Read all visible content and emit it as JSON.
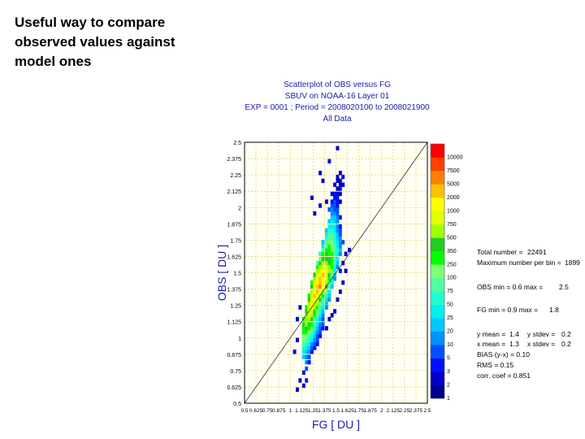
{
  "slide": {
    "intro_lines": [
      "Useful way to compare",
      "observed values against",
      "model ones"
    ]
  },
  "chart_header": {
    "lines": [
      "Scatterplot of OBS versus FG",
      "SBUV on NOAA-16 Layer 01",
      "EXP = 0001 ; Period = 2008020100 to 2008021900",
      "All Data"
    ]
  },
  "stats": {
    "total_label": "Total number =",
    "total_value": "22491",
    "maxbin_label": "Maximum number per bin =",
    "maxbin_value": "1899",
    "obs_label": "OBS min = 0.6 max =",
    "obs_value": "2.5",
    "fg_label": "FG min = 0.9 max =",
    "fg_value": "1.8",
    "ymean_label": "y mean =",
    "ymean_value": "1.4",
    "ystdev_label": "y stdev =",
    "ystdev_value": "0.2",
    "xmean_label": "x mean =",
    "xmean_value": "1.3",
    "xstdev_label": "x stdev =",
    "xstdev_value": "0.2",
    "bias_line": "BIAS (y-x) = 0.10",
    "rms_line": "RMS = 0.15",
    "corr_line": "corr. coef = 0.851"
  },
  "chart_data": {
    "type": "heatmap",
    "xlabel": "FG [ DU ]",
    "ylabel": "OBS [ DU ]",
    "xlim": [
      0.5,
      2.5
    ],
    "ylim": [
      0.5,
      2.5
    ],
    "x_ticks": [
      "0.5",
      "0.625",
      "0.75",
      "0.875",
      "1",
      "1.125",
      "1.25",
      "1.375",
      "1.5",
      "1.625",
      "1.75",
      "1.875",
      "2",
      "2.125",
      "2.25",
      "2.375",
      "2.5"
    ],
    "y_ticks": [
      "0.5",
      "0.625",
      "0.75",
      "0.875",
      "1",
      "1.125",
      "1.25",
      "1.375",
      "1.5",
      "1.625",
      "1.75",
      "1.875",
      "2",
      "2.125",
      "2.25",
      "2.375",
      "2.5"
    ],
    "grid": true,
    "diagonal_line": true,
    "color_levels": [
      "1",
      "2",
      "3",
      "5",
      "10",
      "20",
      "25",
      "50",
      "75",
      "100",
      "250",
      "350",
      "500",
      "750",
      "1000",
      "2000",
      "5000",
      "7500",
      "10000"
    ],
    "level_colors": [
      "#00008f",
      "#0000c8",
      "#0010ff",
      "#0050ff",
      "#0090ff",
      "#00c8ff",
      "#00f0f0",
      "#20ffd0",
      "#50ffa0",
      "#80ff70",
      "#00ff00",
      "#20d020",
      "#a0ff00",
      "#e0ff00",
      "#ffff00",
      "#ffc000",
      "#ff8000",
      "#ff4000",
      "#ff0000"
    ],
    "bin_size": 0.0313,
    "bins": [
      [
        1.13,
        0.62,
        1
      ],
      [
        1.16,
        0.66,
        2
      ],
      [
        1.13,
        0.72,
        2
      ],
      [
        1.16,
        0.75,
        3
      ],
      [
        1.16,
        0.8,
        4
      ],
      [
        1.19,
        0.8,
        2
      ],
      [
        1.13,
        0.84,
        5
      ],
      [
        1.16,
        0.84,
        4
      ],
      [
        1.19,
        0.84,
        3
      ],
      [
        1.13,
        0.88,
        6
      ],
      [
        1.16,
        0.88,
        5
      ],
      [
        1.19,
        0.88,
        4
      ],
      [
        1.22,
        0.88,
        2
      ],
      [
        1.13,
        0.91,
        7
      ],
      [
        1.16,
        0.91,
        6
      ],
      [
        1.19,
        0.91,
        5
      ],
      [
        1.22,
        0.91,
        3
      ],
      [
        1.25,
        0.91,
        2
      ],
      [
        1.13,
        0.94,
        8
      ],
      [
        1.16,
        0.94,
        7
      ],
      [
        1.19,
        0.94,
        6
      ],
      [
        1.22,
        0.94,
        4
      ],
      [
        1.25,
        0.94,
        3
      ],
      [
        1.28,
        0.94,
        2
      ],
      [
        1.13,
        0.97,
        9
      ],
      [
        1.16,
        0.97,
        8
      ],
      [
        1.19,
        0.97,
        7
      ],
      [
        1.22,
        0.97,
        6
      ],
      [
        1.25,
        0.97,
        4
      ],
      [
        1.28,
        0.97,
        3
      ],
      [
        1.13,
        1.0,
        9
      ],
      [
        1.16,
        1.0,
        9
      ],
      [
        1.19,
        1.0,
        8
      ],
      [
        1.22,
        1.0,
        7
      ],
      [
        1.25,
        1.0,
        5
      ],
      [
        1.28,
        1.0,
        3
      ],
      [
        1.31,
        1.0,
        2
      ],
      [
        1.13,
        1.03,
        10
      ],
      [
        1.16,
        1.03,
        10
      ],
      [
        1.19,
        1.03,
        9
      ],
      [
        1.22,
        1.03,
        8
      ],
      [
        1.25,
        1.03,
        6
      ],
      [
        1.28,
        1.03,
        4
      ],
      [
        1.31,
        1.03,
        3
      ],
      [
        1.13,
        1.06,
        10
      ],
      [
        1.16,
        1.06,
        11
      ],
      [
        1.19,
        1.06,
        10
      ],
      [
        1.22,
        1.06,
        9
      ],
      [
        1.25,
        1.06,
        7
      ],
      [
        1.28,
        1.06,
        5
      ],
      [
        1.31,
        1.06,
        3
      ],
      [
        1.34,
        1.06,
        2
      ],
      [
        1.13,
        1.09,
        11
      ],
      [
        1.16,
        1.09,
        12
      ],
      [
        1.19,
        1.09,
        11
      ],
      [
        1.22,
        1.09,
        10
      ],
      [
        1.25,
        1.09,
        8
      ],
      [
        1.28,
        1.09,
        6
      ],
      [
        1.31,
        1.09,
        4
      ],
      [
        1.34,
        1.09,
        3
      ],
      [
        1.13,
        1.13,
        10
      ],
      [
        1.16,
        1.13,
        12
      ],
      [
        1.19,
        1.13,
        12
      ],
      [
        1.22,
        1.13,
        11
      ],
      [
        1.25,
        1.13,
        9
      ],
      [
        1.28,
        1.13,
        7
      ],
      [
        1.31,
        1.13,
        5
      ],
      [
        1.34,
        1.13,
        3
      ],
      [
        1.16,
        1.16,
        12
      ],
      [
        1.19,
        1.16,
        13
      ],
      [
        1.22,
        1.16,
        12
      ],
      [
        1.25,
        1.16,
        10
      ],
      [
        1.28,
        1.16,
        8
      ],
      [
        1.31,
        1.16,
        6
      ],
      [
        1.34,
        1.16,
        4
      ],
      [
        1.16,
        1.19,
        11
      ],
      [
        1.19,
        1.19,
        13
      ],
      [
        1.22,
        1.19,
        13
      ],
      [
        1.25,
        1.19,
        11
      ],
      [
        1.28,
        1.19,
        9
      ],
      [
        1.31,
        1.19,
        7
      ],
      [
        1.34,
        1.19,
        5
      ],
      [
        1.16,
        1.22,
        10
      ],
      [
        1.19,
        1.22,
        13
      ],
      [
        1.22,
        1.22,
        14
      ],
      [
        1.25,
        1.22,
        12
      ],
      [
        1.28,
        1.22,
        10
      ],
      [
        1.31,
        1.22,
        8
      ],
      [
        1.34,
        1.22,
        6
      ],
      [
        1.38,
        1.22,
        4
      ],
      [
        1.19,
        1.25,
        12
      ],
      [
        1.22,
        1.25,
        14
      ],
      [
        1.25,
        1.25,
        13
      ],
      [
        1.28,
        1.25,
        12
      ],
      [
        1.31,
        1.25,
        9
      ],
      [
        1.34,
        1.25,
        7
      ],
      [
        1.38,
        1.25,
        5
      ],
      [
        1.19,
        1.28,
        11
      ],
      [
        1.22,
        1.28,
        14
      ],
      [
        1.25,
        1.28,
        14
      ],
      [
        1.28,
        1.28,
        13
      ],
      [
        1.31,
        1.28,
        11
      ],
      [
        1.34,
        1.28,
        8
      ],
      [
        1.38,
        1.28,
        6
      ],
      [
        1.41,
        1.28,
        4
      ],
      [
        1.19,
        1.31,
        10
      ],
      [
        1.22,
        1.31,
        13
      ],
      [
        1.25,
        1.31,
        15
      ],
      [
        1.28,
        1.31,
        14
      ],
      [
        1.31,
        1.31,
        12
      ],
      [
        1.34,
        1.31,
        10
      ],
      [
        1.38,
        1.31,
        7
      ],
      [
        1.41,
        1.31,
        5
      ],
      [
        1.22,
        1.34,
        12
      ],
      [
        1.25,
        1.34,
        14
      ],
      [
        1.28,
        1.34,
        15
      ],
      [
        1.31,
        1.34,
        14
      ],
      [
        1.34,
        1.34,
        12
      ],
      [
        1.38,
        1.34,
        9
      ],
      [
        1.41,
        1.34,
        6
      ],
      [
        1.22,
        1.38,
        11
      ],
      [
        1.25,
        1.38,
        14
      ],
      [
        1.28,
        1.38,
        15
      ],
      [
        1.31,
        1.38,
        16
      ],
      [
        1.34,
        1.38,
        14
      ],
      [
        1.38,
        1.38,
        11
      ],
      [
        1.41,
        1.38,
        8
      ],
      [
        1.44,
        1.38,
        5
      ],
      [
        1.22,
        1.41,
        10
      ],
      [
        1.25,
        1.41,
        13
      ],
      [
        1.28,
        1.41,
        14
      ],
      [
        1.31,
        1.41,
        15
      ],
      [
        1.34,
        1.41,
        14
      ],
      [
        1.38,
        1.41,
        12
      ],
      [
        1.41,
        1.41,
        9
      ],
      [
        1.44,
        1.41,
        6
      ],
      [
        1.25,
        1.44,
        12
      ],
      [
        1.28,
        1.44,
        14
      ],
      [
        1.31,
        1.44,
        15
      ],
      [
        1.34,
        1.44,
        14
      ],
      [
        1.38,
        1.44,
        13
      ],
      [
        1.41,
        1.44,
        10
      ],
      [
        1.44,
        1.44,
        7
      ],
      [
        1.47,
        1.44,
        4
      ],
      [
        1.25,
        1.47,
        11
      ],
      [
        1.28,
        1.47,
        13
      ],
      [
        1.31,
        1.47,
        14
      ],
      [
        1.34,
        1.47,
        15
      ],
      [
        1.38,
        1.47,
        13
      ],
      [
        1.41,
        1.47,
        11
      ],
      [
        1.44,
        1.47,
        8
      ],
      [
        1.47,
        1.47,
        5
      ],
      [
        1.28,
        1.5,
        12
      ],
      [
        1.31,
        1.5,
        13
      ],
      [
        1.34,
        1.5,
        14
      ],
      [
        1.38,
        1.5,
        13
      ],
      [
        1.41,
        1.5,
        12
      ],
      [
        1.44,
        1.5,
        9
      ],
      [
        1.47,
        1.5,
        6
      ],
      [
        1.28,
        1.53,
        10
      ],
      [
        1.31,
        1.53,
        12
      ],
      [
        1.34,
        1.53,
        13
      ],
      [
        1.38,
        1.53,
        13
      ],
      [
        1.41,
        1.53,
        12
      ],
      [
        1.44,
        1.53,
        10
      ],
      [
        1.47,
        1.53,
        7
      ],
      [
        1.5,
        1.53,
        4
      ],
      [
        1.28,
        1.56,
        8
      ],
      [
        1.31,
        1.56,
        11
      ],
      [
        1.34,
        1.56,
        12
      ],
      [
        1.38,
        1.56,
        12
      ],
      [
        1.41,
        1.56,
        11
      ],
      [
        1.44,
        1.56,
        10
      ],
      [
        1.47,
        1.56,
        8
      ],
      [
        1.5,
        1.56,
        5
      ],
      [
        1.31,
        1.59,
        9
      ],
      [
        1.34,
        1.59,
        11
      ],
      [
        1.38,
        1.59,
        11
      ],
      [
        1.41,
        1.59,
        11
      ],
      [
        1.44,
        1.59,
        10
      ],
      [
        1.47,
        1.59,
        8
      ],
      [
        1.5,
        1.59,
        6
      ],
      [
        1.31,
        1.63,
        7
      ],
      [
        1.34,
        1.63,
        10
      ],
      [
        1.38,
        1.63,
        11
      ],
      [
        1.41,
        1.63,
        10
      ],
      [
        1.44,
        1.63,
        10
      ],
      [
        1.47,
        1.63,
        8
      ],
      [
        1.5,
        1.63,
        6
      ],
      [
        1.53,
        1.63,
        4
      ],
      [
        1.34,
        1.66,
        8
      ],
      [
        1.38,
        1.66,
        10
      ],
      [
        1.41,
        1.66,
        10
      ],
      [
        1.44,
        1.66,
        9
      ],
      [
        1.47,
        1.66,
        8
      ],
      [
        1.5,
        1.66,
        7
      ],
      [
        1.53,
        1.66,
        5
      ],
      [
        1.34,
        1.69,
        6
      ],
      [
        1.38,
        1.69,
        9
      ],
      [
        1.41,
        1.69,
        10
      ],
      [
        1.44,
        1.69,
        9
      ],
      [
        1.47,
        1.69,
        8
      ],
      [
        1.5,
        1.69,
        6
      ],
      [
        1.53,
        1.69,
        4
      ],
      [
        1.34,
        1.72,
        5
      ],
      [
        1.38,
        1.72,
        8
      ],
      [
        1.41,
        1.72,
        9
      ],
      [
        1.44,
        1.72,
        9
      ],
      [
        1.47,
        1.72,
        7
      ],
      [
        1.5,
        1.72,
        6
      ],
      [
        1.53,
        1.72,
        4
      ],
      [
        1.56,
        1.72,
        3
      ],
      [
        1.38,
        1.75,
        7
      ],
      [
        1.41,
        1.75,
        8
      ],
      [
        1.44,
        1.75,
        8
      ],
      [
        1.47,
        1.75,
        7
      ],
      [
        1.5,
        1.75,
        5
      ],
      [
        1.53,
        1.75,
        4
      ],
      [
        1.38,
        1.78,
        6
      ],
      [
        1.41,
        1.78,
        8
      ],
      [
        1.44,
        1.78,
        8
      ],
      [
        1.47,
        1.78,
        7
      ],
      [
        1.5,
        1.78,
        5
      ],
      [
        1.53,
        1.78,
        3
      ],
      [
        1.38,
        1.81,
        5
      ],
      [
        1.41,
        1.81,
        7
      ],
      [
        1.44,
        1.81,
        7
      ],
      [
        1.47,
        1.81,
        6
      ],
      [
        1.5,
        1.81,
        4
      ],
      [
        1.53,
        1.81,
        3
      ],
      [
        1.41,
        1.84,
        6
      ],
      [
        1.44,
        1.84,
        6
      ],
      [
        1.47,
        1.84,
        6
      ],
      [
        1.5,
        1.84,
        4
      ],
      [
        1.53,
        1.84,
        2
      ],
      [
        1.41,
        1.88,
        5
      ],
      [
        1.44,
        1.88,
        6
      ],
      [
        1.47,
        1.88,
        5
      ],
      [
        1.5,
        1.88,
        4
      ],
      [
        1.44,
        1.91,
        5
      ],
      [
        1.47,
        1.91,
        5
      ],
      [
        1.5,
        1.91,
        4
      ],
      [
        1.53,
        1.91,
        2
      ],
      [
        1.44,
        1.94,
        4
      ],
      [
        1.47,
        1.94,
        4
      ],
      [
        1.5,
        1.94,
        3
      ],
      [
        1.41,
        1.97,
        3
      ],
      [
        1.44,
        1.97,
        4
      ],
      [
        1.47,
        1.97,
        3
      ],
      [
        1.5,
        1.97,
        3
      ],
      [
        1.44,
        2.0,
        3
      ],
      [
        1.47,
        2.0,
        3
      ],
      [
        1.5,
        2.0,
        2
      ],
      [
        1.44,
        2.03,
        2
      ],
      [
        1.47,
        2.03,
        3
      ],
      [
        1.5,
        2.03,
        2
      ],
      [
        1.53,
        2.03,
        1
      ],
      [
        1.47,
        2.06,
        2
      ],
      [
        1.5,
        2.06,
        2
      ],
      [
        1.47,
        2.09,
        2
      ],
      [
        1.5,
        2.09,
        1
      ],
      [
        1.53,
        2.09,
        1
      ],
      [
        1.5,
        2.13,
        1
      ],
      [
        1.53,
        2.13,
        2
      ],
      [
        1.47,
        2.16,
        1
      ],
      [
        1.53,
        2.16,
        1
      ],
      [
        1.56,
        2.16,
        1
      ],
      [
        1.5,
        2.19,
        1
      ],
      [
        1.53,
        2.19,
        1
      ],
      [
        1.5,
        2.22,
        1
      ],
      [
        1.56,
        2.22,
        1
      ],
      [
        1.53,
        2.25,
        1
      ],
      [
        1.44,
        2.09,
        1
      ],
      [
        1.38,
        2.03,
        1
      ],
      [
        1.31,
        2.0,
        1
      ],
      [
        1.22,
        2.06,
        1
      ],
      [
        1.25,
        1.94,
        1
      ],
      [
        1.34,
        2.19,
        1
      ],
      [
        1.31,
        2.25,
        1
      ],
      [
        1.41,
        2.34,
        1
      ],
      [
        1.5,
        2.44,
        1
      ],
      [
        1.06,
        1.13,
        1
      ],
      [
        1.06,
        0.97,
        1
      ],
      [
        1.09,
        1.22,
        1
      ],
      [
        1.03,
        0.88,
        1
      ],
      [
        1.06,
        0.59,
        1
      ],
      [
        1.09,
        0.66,
        1
      ],
      [
        1.59,
        1.5,
        1
      ],
      [
        1.56,
        1.41,
        1
      ],
      [
        1.53,
        1.34,
        1
      ],
      [
        1.5,
        1.28,
        1
      ],
      [
        1.47,
        1.19,
        1
      ],
      [
        1.44,
        1.16,
        1
      ],
      [
        1.41,
        1.13,
        1
      ],
      [
        1.38,
        1.06,
        1
      ],
      [
        1.63,
        1.66,
        1
      ],
      [
        1.59,
        1.63,
        1
      ],
      [
        1.56,
        1.56,
        1
      ],
      [
        1.53,
        1.5,
        2
      ]
    ]
  }
}
